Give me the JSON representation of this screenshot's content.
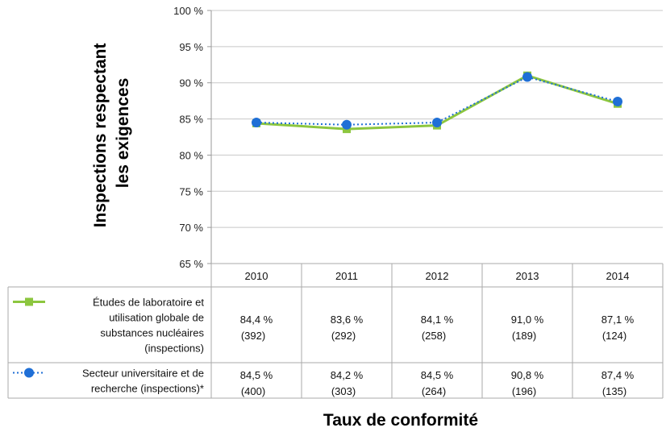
{
  "chart_data": {
    "type": "line",
    "title": "",
    "ylabel": [
      "Inspections respectant",
      "les exigences"
    ],
    "xlabel": "Taux de conformité",
    "ylim": [
      65,
      100
    ],
    "yticks": [
      "65 %",
      "70 %",
      "75 %",
      "80 %",
      "85 %",
      "90 %",
      "95 %",
      "100 %"
    ],
    "ytick_values": [
      65,
      70,
      75,
      80,
      85,
      90,
      95,
      100
    ],
    "grid": true,
    "categories": [
      "2010",
      "2011",
      "2012",
      "2013",
      "2014"
    ],
    "series": [
      {
        "name": [
          "Études de laboratoire et",
          "utilisation globale de",
          "substances nucléaires",
          "(inspections)"
        ],
        "values": [
          84.4,
          83.6,
          84.1,
          91.0,
          87.1
        ],
        "value_labels": [
          "84,4 %",
          "83,6 %",
          "84,1 %",
          "91,0 %",
          "87,1 %"
        ],
        "counts": [
          "(392)",
          "(292)",
          "(258)",
          "(189)",
          "(124)"
        ],
        "color": "#8cc63f",
        "marker": "square",
        "line": "solid"
      },
      {
        "name": [
          "Secteur universitaire et de",
          "recherche (inspections)*"
        ],
        "values": [
          84.5,
          84.2,
          84.5,
          90.8,
          87.4
        ],
        "value_labels": [
          "84,5 %",
          "84,2 %",
          "84,5 %",
          "90,8 %",
          "87,4 %"
        ],
        "counts": [
          "(400)",
          "(303)",
          "(264)",
          "(196)",
          "(135)"
        ],
        "color": "#1f6fd6",
        "marker": "circle",
        "line": "dotted"
      }
    ]
  }
}
